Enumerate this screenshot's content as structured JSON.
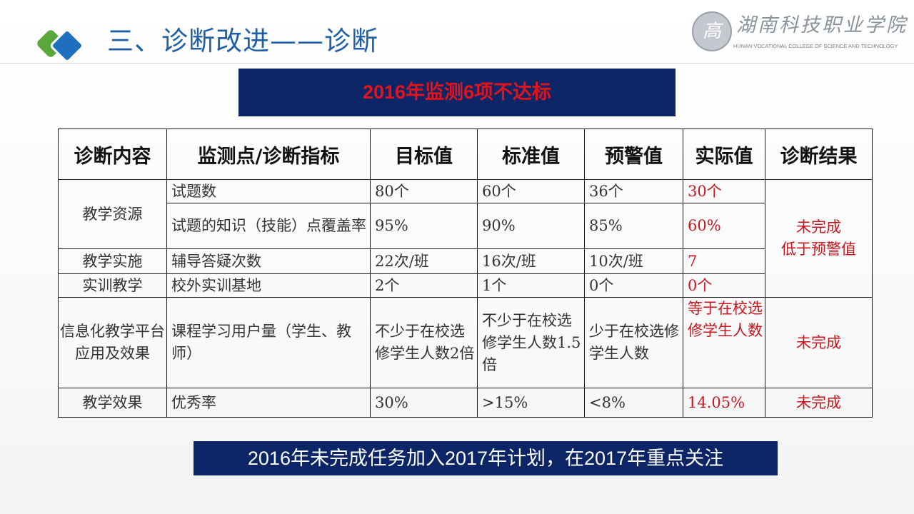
{
  "header": {
    "title": "三、诊断改进——诊断",
    "logo": {
      "seal_char": "高",
      "name_cn": "湖南科技职业学院",
      "name_en": "HUNAN VOCATIONAL COLLEGE OF SCIENCE AND TECHNOLOGY"
    }
  },
  "banner": {
    "text": "2016年监测6项不达标",
    "background": "#0c2566",
    "text_color": "#e2141b"
  },
  "table": {
    "headers": [
      "诊断内容",
      "监测点/诊断指标",
      "目标值",
      "标准值",
      "预警值",
      "实际值",
      "诊断结果"
    ],
    "groups": {
      "resources": "教学资源",
      "implementation": "教学实施",
      "training": "实训教学",
      "platform": "信息化教学平台应用及效果",
      "effect": "教学效果"
    },
    "rows": [
      {
        "indicator": "试题数",
        "target": "80个",
        "standard": "60个",
        "warning": "36个",
        "actual": "30个"
      },
      {
        "indicator": "试题的知识（技能）点覆盖率",
        "target": "95%",
        "standard": "90%",
        "warning": "85%",
        "actual": "60%"
      },
      {
        "indicator": "辅导答疑次数",
        "target": "22次/班",
        "standard": "16次/班",
        "warning": "10次/班",
        "actual": "7"
      },
      {
        "indicator": "校外实训基地",
        "target": "2个",
        "standard": "1个",
        "warning": "0个",
        "actual": "0个"
      },
      {
        "indicator": "课程学习用户量（学生、教师）",
        "target": "不少于在校选修学生人数2倍",
        "standard": "不少于在校选修学生人数1.5倍",
        "warning": "少于在校选修学生人数",
        "actual": "等于在校选修学生人数"
      },
      {
        "indicator": "优秀率",
        "target": "30%",
        "standard": ">15%",
        "warning": "<8%",
        "actual": "14.05%"
      }
    ],
    "results": {
      "merged_line1": "未完成",
      "merged_line2": "低于预警值",
      "platform": "未完成",
      "effect": "未完成"
    },
    "red_color": "#c8161d"
  },
  "footer": {
    "text": "2016年未完成任务加入2017年计划，在2017年重点关注",
    "background": "#0c2566"
  }
}
